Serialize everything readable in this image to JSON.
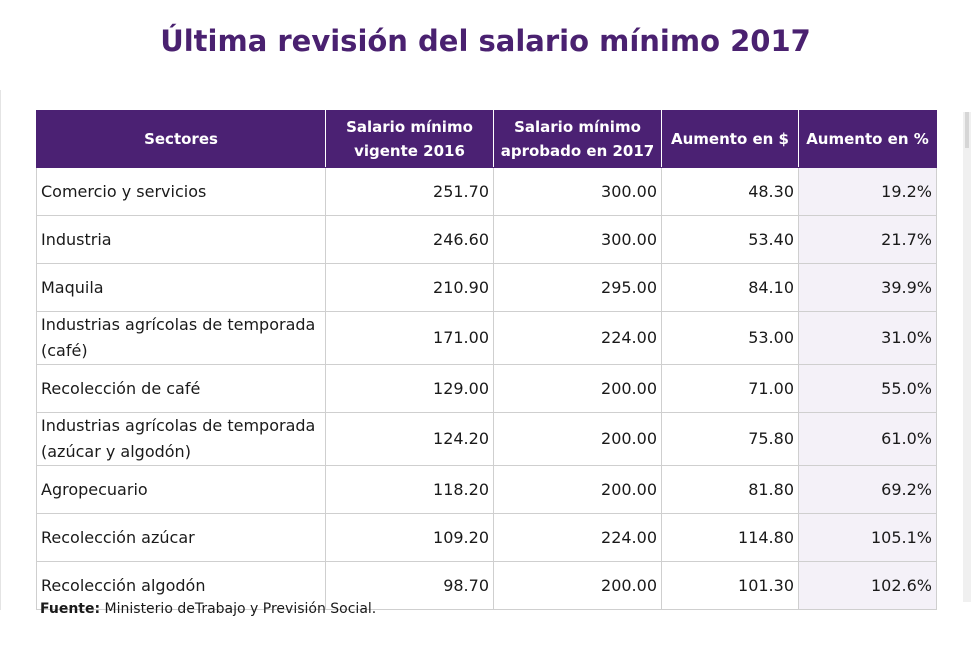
{
  "title": "Última revisión del salario mínimo 2017",
  "chart_data": {
    "type": "table",
    "title": "Última revisión del salario mínimo 2017",
    "columns": [
      "Sectores",
      "Salario mínimo vigente 2016",
      "Salario mínimo aprobado en 2017",
      "Aumento en $",
      "Aumento en %"
    ],
    "rows": [
      {
        "sector": "Comercio y servicios",
        "vigente_2016": "251.70",
        "aprobado_2017": "300.00",
        "aumento_usd": "48.30",
        "aumento_pct": "19.2%"
      },
      {
        "sector": "Industria",
        "vigente_2016": "246.60",
        "aprobado_2017": "300.00",
        "aumento_usd": "53.40",
        "aumento_pct": "21.7%"
      },
      {
        "sector": "Maquila",
        "vigente_2016": "210.90",
        "aprobado_2017": "295.00",
        "aumento_usd": "84.10",
        "aumento_pct": "39.9%"
      },
      {
        "sector": "Industrias agrícolas de temporada (café)",
        "vigente_2016": "171.00",
        "aprobado_2017": "224.00",
        "aumento_usd": "53.00",
        "aumento_pct": "31.0%"
      },
      {
        "sector": "Recolección de café",
        "vigente_2016": "129.00",
        "aprobado_2017": "200.00",
        "aumento_usd": "71.00",
        "aumento_pct": "55.0%"
      },
      {
        "sector": "Industrias agrícolas de temporada (azúcar y algodón)",
        "vigente_2016": "124.20",
        "aprobado_2017": "200.00",
        "aumento_usd": "75.80",
        "aumento_pct": "61.0%"
      },
      {
        "sector": "Agropecuario",
        "vigente_2016": "118.20",
        "aprobado_2017": "200.00",
        "aumento_usd": "81.80",
        "aumento_pct": "69.2%"
      },
      {
        "sector": "Recolección azúcar",
        "vigente_2016": "109.20",
        "aprobado_2017": "224.00",
        "aumento_usd": "114.80",
        "aumento_pct": "105.1%"
      },
      {
        "sector": "Recolección algodón",
        "vigente_2016": "98.70",
        "aprobado_2017": "200.00",
        "aumento_usd": "101.30",
        "aumento_pct": "102.6%"
      }
    ]
  },
  "source": {
    "label": "Fuente:",
    "text": "Ministerio deTrabajo y Previsión Social."
  },
  "colors": {
    "title": "#4a2170",
    "header_bg": "#4b2173",
    "header_text": "#ffffff",
    "pct_column_bg": "#f4f1f8",
    "grid": "#cfcfcf"
  }
}
